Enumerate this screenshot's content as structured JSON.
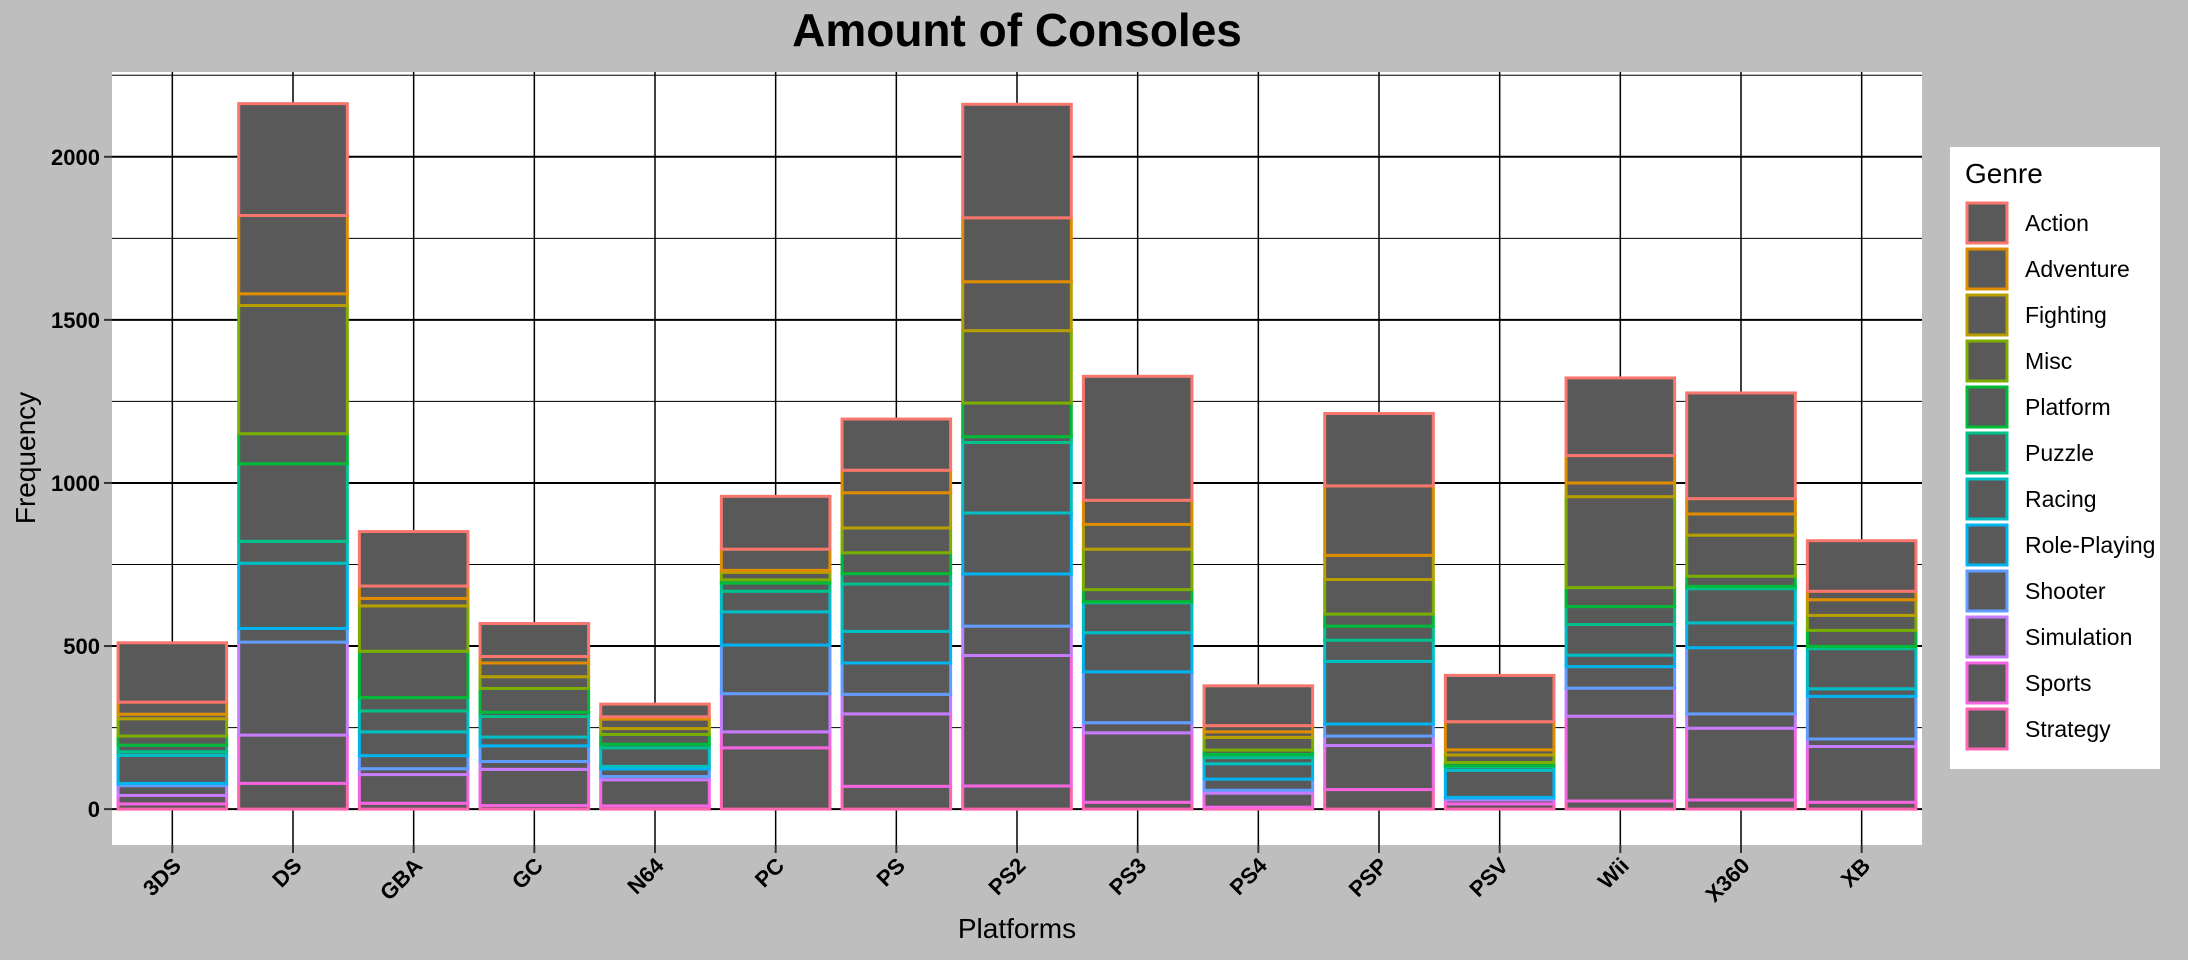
{
  "chart_data": {
    "type": "bar",
    "stacked": true,
    "title": "Amount of Consoles",
    "xlabel": "Platforms",
    "ylabel": "Frequency",
    "ylim": [
      -110,
      2260
    ],
    "yticks": [
      0,
      500,
      1000,
      1500,
      2000
    ],
    "grid": true,
    "legend_title": "Genre",
    "legend_position": "right",
    "bar_fill": "#595959",
    "categories": [
      "3DS",
      "DS",
      "GBA",
      "GC",
      "N64",
      "PC",
      "PS",
      "PS2",
      "PS3",
      "PS4",
      "PSP",
      "PSV",
      "Wii",
      "X360",
      "XB"
    ],
    "series": [
      {
        "name": "Action",
        "color": "#F8766D",
        "values": [
          182,
          343,
          167,
          101,
          39,
          162,
          157,
          348,
          380,
          122,
          222,
          142,
          238,
          324,
          155
        ]
      },
      {
        "name": "Adventure",
        "color": "#DE8C00",
        "values": [
          37,
          240,
          38,
          20,
          7,
          65,
          69,
          196,
          74,
          19,
          213,
          86,
          84,
          47,
          26
        ]
      },
      {
        "name": "Fighting",
        "color": "#B79F00",
        "values": [
          14,
          36,
          23,
          42,
          29,
          6,
          108,
          150,
          76,
          17,
          74,
          16,
          42,
          65,
          48
        ]
      },
      {
        "name": "Misc",
        "color": "#7CAE00",
        "values": [
          53,
          393,
          139,
          36,
          18,
          23,
          76,
          222,
          124,
          39,
          106,
          23,
          279,
          126,
          46
        ]
      },
      {
        "name": "Platform",
        "color": "#00BA38",
        "values": [
          28,
          92,
          142,
          73,
          30,
          10,
          64,
          103,
          37,
          13,
          37,
          10,
          58,
          31,
          49
        ]
      },
      {
        "name": "Puzzle",
        "color": "#00C08B",
        "values": [
          20,
          238,
          41,
          13,
          11,
          25,
          32,
          18,
          3,
          10,
          43,
          3,
          55,
          7,
          7
        ]
      },
      {
        "name": "Racing",
        "color": "#00BFC4",
        "values": [
          11,
          67,
          64,
          63,
          57,
          63,
          145,
          216,
          92,
          19,
          65,
          11,
          94,
          105,
          123
        ]
      },
      {
        "name": "Role-Playing",
        "color": "#00B4F0",
        "values": [
          86,
          200,
          73,
          27,
          8,
          102,
          97,
          187,
          120,
          47,
          192,
          83,
          35,
          76,
          23
        ]
      },
      {
        "name": "Shooter",
        "color": "#619CFF",
        "values": [
          7,
          42,
          40,
          48,
          23,
          149,
          96,
          160,
          156,
          34,
          37,
          4,
          66,
          203,
          131
        ]
      },
      {
        "name": "Simulation",
        "color": "#C77CFF",
        "values": [
          30,
          285,
          18,
          24,
          10,
          117,
          60,
          90,
          31,
          9,
          29,
          4,
          86,
          44,
          23
        ]
      },
      {
        "name": "Sports",
        "color": "#F564E3",
        "values": [
          26,
          148,
          88,
          111,
          80,
          49,
          222,
          400,
          213,
          43,
          135,
          12,
          260,
          220,
          171
        ]
      },
      {
        "name": "Strategy",
        "color": "#FF64B0",
        "values": [
          16,
          79,
          18,
          11,
          10,
          188,
          70,
          71,
          21,
          6,
          60,
          16,
          25,
          28,
          21
        ]
      }
    ]
  }
}
